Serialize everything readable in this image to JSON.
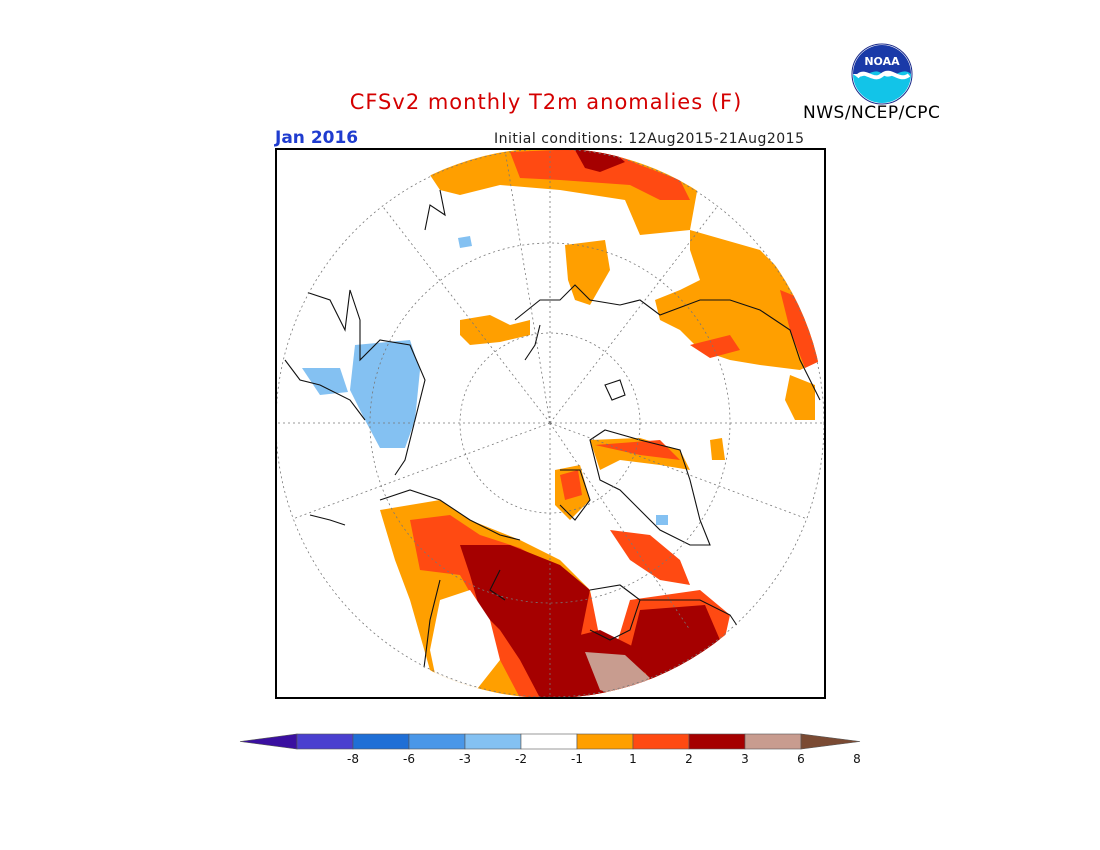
{
  "title": "CFSv2 monthly T2m anomalies (F)",
  "valid_month": "Jan 2016",
  "initial_conditions": "Initial conditions: 12Aug2015-21Aug2015",
  "agency": "NWS/NCEP/CPC",
  "logo_text": "NOAA",
  "colorbar": {
    "labels": [
      "-8",
      "-6",
      "-3",
      "-2",
      "-1",
      "1",
      "2",
      "3",
      "6",
      "8"
    ],
    "colors": [
      "#3a0fa0",
      "#4a3fcf",
      "#1f6fd6",
      "#4a97e8",
      "#84c1f2",
      "#ffffff",
      "#ff9f00",
      "#ff4a12",
      "#a50000",
      "#c89c8f",
      "#7a4a33"
    ]
  }
}
